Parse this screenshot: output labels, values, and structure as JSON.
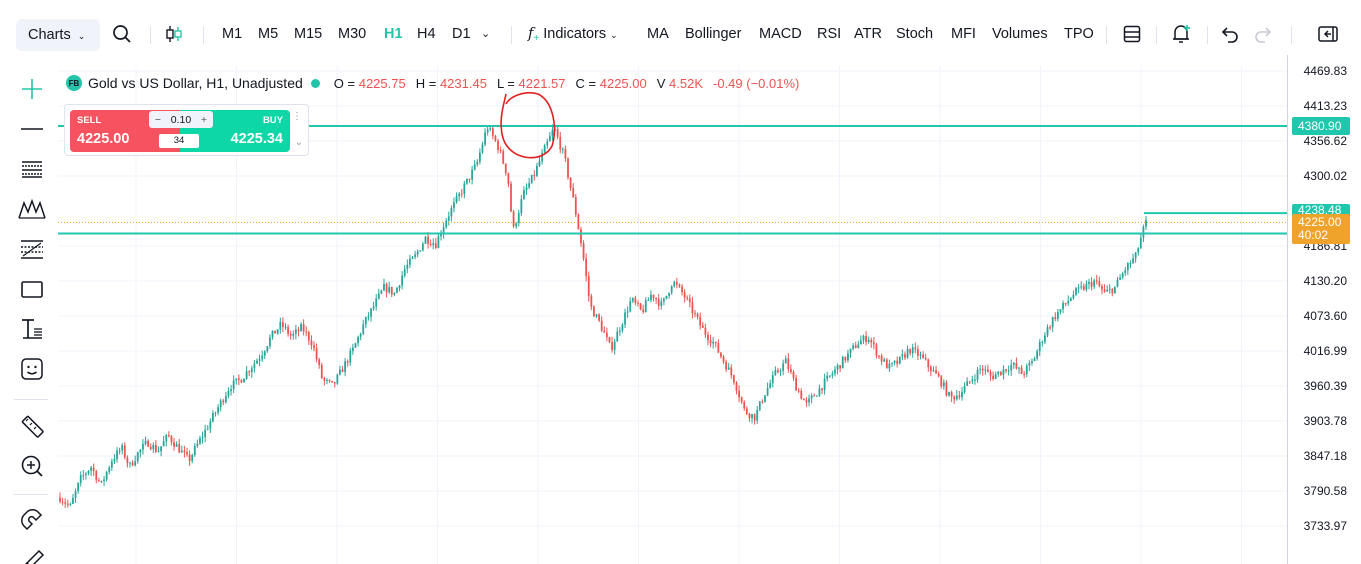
{
  "toolbar": {
    "charts_label": "Charts",
    "timeframes": [
      "M1",
      "M5",
      "M15",
      "M30",
      "H1",
      "H4",
      "D1"
    ],
    "active_timeframe": "H1",
    "indicators_label": "Indicators",
    "indicator_items": [
      "MA",
      "Bollinger",
      "MACD",
      "RSI",
      "ATR",
      "Stoch",
      "MFI",
      "Volumes",
      "TPO"
    ]
  },
  "legend": {
    "badge": "FB",
    "title": "Gold vs US Dollar, H1, Unadjusted",
    "o_label": "O =",
    "o_value": "4225.75",
    "h_label": "H =",
    "h_value": "4231.45",
    "l_label": "L =",
    "l_value": "4221.57",
    "c_label": "C =",
    "c_value": "4225.00",
    "v_label": "V",
    "v_value": "4.52K",
    "change": "-0.49 (−0.01%)"
  },
  "trade": {
    "sell_label": "SELL",
    "sell_price": "4225.00",
    "buy_label": "BUY",
    "buy_price": "4225.34",
    "quantity": "0.10",
    "spread": "34"
  },
  "price_axis": {
    "ticks": [
      "4469.83",
      "4413.23",
      "4356.62",
      "4300.02",
      "4186.81",
      "4130.20",
      "4073.60",
      "4016.99",
      "3960.39",
      "3903.78",
      "3847.18",
      "3790.58",
      "3733.97"
    ],
    "line_badge_upper": "4380.90",
    "line_badge_lower_partial": "4238.48",
    "current_price": "4225.00",
    "countdown": "40:02"
  },
  "colors": {
    "accent": "#22c5a9",
    "up_candle": "#26a69a",
    "down_candle": "#ef5350",
    "hline": "#1fc7ad",
    "current_badge": "#f0a32b",
    "annotation": "#e02020"
  },
  "chart_data": {
    "type": "candlestick",
    "symbol": "Gold vs US Dollar",
    "timeframe": "H1",
    "ylim": [
      3700,
      4480
    ],
    "horizontal_lines": [
      4380.9,
      4207
    ],
    "current_price": 4225.0,
    "price_path": [
      [
        0,
        3780
      ],
      [
        4,
        3765
      ],
      [
        8,
        3810
      ],
      [
        12,
        3830
      ],
      [
        16,
        3800
      ],
      [
        20,
        3840
      ],
      [
        24,
        3860
      ],
      [
        27,
        3830
      ],
      [
        30,
        3850
      ],
      [
        34,
        3870
      ],
      [
        38,
        3855
      ],
      [
        42,
        3880
      ],
      [
        46,
        3860
      ],
      [
        50,
        3840
      ],
      [
        54,
        3870
      ],
      [
        58,
        3900
      ],
      [
        62,
        3930
      ],
      [
        66,
        3960
      ],
      [
        70,
        3970
      ],
      [
        74,
        3990
      ],
      [
        78,
        4010
      ],
      [
        82,
        4040
      ],
      [
        86,
        4060
      ],
      [
        90,
        4040
      ],
      [
        94,
        4055
      ],
      [
        98,
        4030
      ],
      [
        102,
        3970
      ],
      [
        106,
        3960
      ],
      [
        110,
        3990
      ],
      [
        114,
        4020
      ],
      [
        118,
        4060
      ],
      [
        122,
        4090
      ],
      [
        126,
        4120
      ],
      [
        130,
        4110
      ],
      [
        134,
        4150
      ],
      [
        138,
        4170
      ],
      [
        142,
        4200
      ],
      [
        146,
        4190
      ],
      [
        150,
        4230
      ],
      [
        154,
        4260
      ],
      [
        158,
        4290
      ],
      [
        162,
        4320
      ],
      [
        166,
        4380
      ],
      [
        170,
        4350
      ],
      [
        174,
        4300
      ],
      [
        176,
        4210
      ],
      [
        180,
        4270
      ],
      [
        184,
        4300
      ],
      [
        188,
        4340
      ],
      [
        192,
        4378
      ],
      [
        196,
        4330
      ],
      [
        200,
        4250
      ],
      [
        203,
        4180
      ],
      [
        206,
        4090
      ],
      [
        210,
        4060
      ],
      [
        214,
        4020
      ],
      [
        218,
        4060
      ],
      [
        222,
        4100
      ],
      [
        226,
        4080
      ],
      [
        230,
        4110
      ],
      [
        234,
        4090
      ],
      [
        238,
        4130
      ],
      [
        242,
        4110
      ],
      [
        246,
        4080
      ],
      [
        250,
        4050
      ],
      [
        254,
        4030
      ],
      [
        258,
        4000
      ],
      [
        262,
        3970
      ],
      [
        266,
        3920
      ],
      [
        270,
        3910
      ],
      [
        274,
        3950
      ],
      [
        278,
        3980
      ],
      [
        282,
        4000
      ],
      [
        286,
        3960
      ],
      [
        290,
        3930
      ],
      [
        294,
        3950
      ],
      [
        298,
        3970
      ],
      [
        302,
        3990
      ],
      [
        306,
        4010
      ],
      [
        310,
        4030
      ],
      [
        314,
        4040
      ],
      [
        318,
        4010
      ],
      [
        322,
        3990
      ],
      [
        326,
        4000
      ],
      [
        330,
        4020
      ],
      [
        334,
        4010
      ],
      [
        338,
        3990
      ],
      [
        342,
        3970
      ],
      [
        346,
        3940
      ],
      [
        350,
        3950
      ],
      [
        354,
        3970
      ],
      [
        358,
        3990
      ],
      [
        362,
        3975
      ],
      [
        366,
        3985
      ],
      [
        370,
        3995
      ],
      [
        374,
        3980
      ],
      [
        378,
        4000
      ],
      [
        382,
        4040
      ],
      [
        386,
        4070
      ],
      [
        390,
        4090
      ],
      [
        394,
        4110
      ],
      [
        398,
        4120
      ],
      [
        402,
        4130
      ],
      [
        406,
        4110
      ],
      [
        410,
        4120
      ],
      [
        414,
        4150
      ],
      [
        418,
        4170
      ],
      [
        420,
        4200
      ],
      [
        422,
        4225
      ]
    ]
  }
}
